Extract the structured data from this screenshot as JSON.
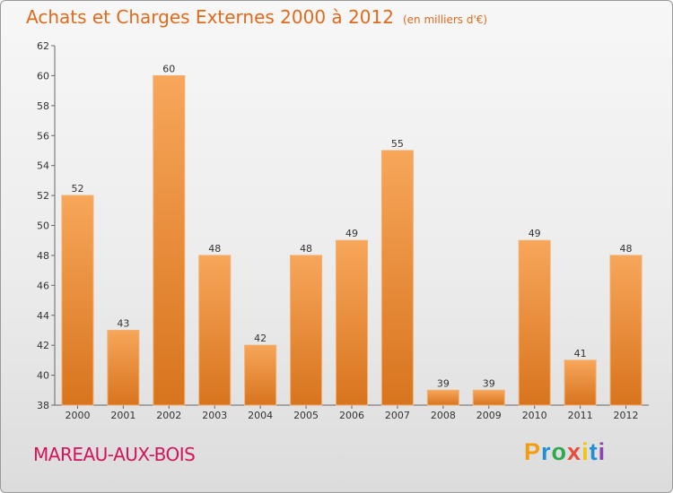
{
  "header": {
    "title": "Achats et Charges Externes 2000 à 2012",
    "subtitle": "(en milliers d'€)"
  },
  "footer": {
    "place": "MAREAU-AUX-BOIS",
    "logo": [
      "P",
      "r",
      "o",
      "x",
      "i",
      "t",
      "i"
    ]
  },
  "colors": {
    "title": "#e06a1c",
    "bar_light": "#f7a65a",
    "bar_dark": "#d8741e",
    "place": "#d4145a"
  },
  "chart_data": {
    "type": "bar",
    "title": "Achats et Charges Externes 2000 à 2012",
    "subtitle": "(en milliers d'€)",
    "xlabel": "",
    "ylabel": "",
    "categories": [
      "2000",
      "2001",
      "2002",
      "2003",
      "2004",
      "2005",
      "2006",
      "2007",
      "2008",
      "2009",
      "2010",
      "2011",
      "2012"
    ],
    "values": [
      52,
      43,
      60,
      48,
      42,
      48,
      49,
      55,
      39,
      39,
      49,
      41,
      48
    ],
    "ylim": [
      38,
      62
    ],
    "yticks": [
      38,
      40,
      42,
      44,
      46,
      48,
      50,
      52,
      54,
      56,
      58,
      60,
      62
    ],
    "grid": false,
    "legend": "none",
    "data_labels": true
  }
}
